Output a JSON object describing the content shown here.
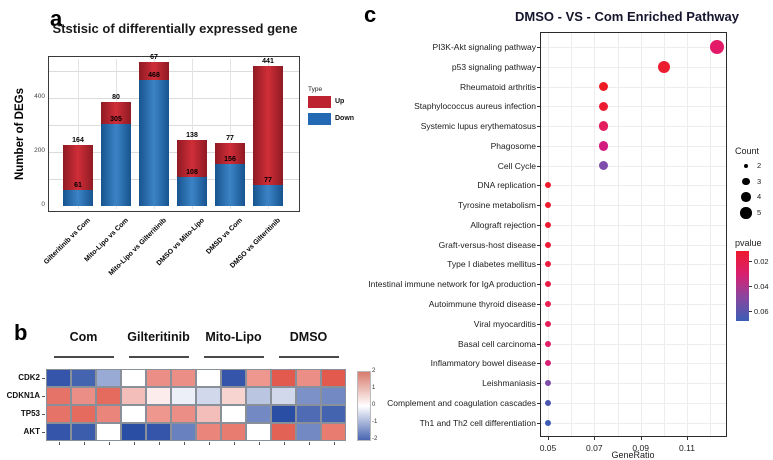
{
  "panels": {
    "a": "a",
    "b": "b",
    "c": "c"
  },
  "chart_data": [
    {
      "type": "bar",
      "stacked": true,
      "title": "Ststisic of differentially expressed gene",
      "ylabel": "Number of DEGs",
      "legend_title": "Type",
      "categories": [
        "Gilteritinib vs Com",
        "Mito-Lipo vs Com",
        "Mito-Lipo vs Gilteritinib",
        "DMSO vs Mito-Lipo",
        "DMSD vs Com",
        "DMSO vs Gilteritinib"
      ],
      "series": [
        {
          "name": "Up",
          "color": "#bd2230",
          "values": [
            164,
            80,
            67,
            138,
            77,
            441
          ]
        },
        {
          "name": "Down",
          "color": "#2268b2",
          "values": [
            61,
            305,
            468,
            108,
            156,
            77
          ]
        }
      ],
      "yticks": [
        0,
        200,
        400
      ],
      "ylim": [
        0,
        560
      ],
      "grid": true
    },
    {
      "type": "heatmap",
      "groups": [
        "Com",
        "Gilteritinib",
        "Mito-Lipo",
        "DMSO"
      ],
      "cols_per_group": 3,
      "rows": [
        "CDK2",
        "CDKN1A",
        "TP53",
        "AKT"
      ],
      "values": [
        [
          -1.9,
          -1.7,
          -0.8,
          0.0,
          1.0,
          1.0,
          0.0,
          -1.9,
          0.9,
          1.6,
          1.0,
          1.6
        ],
        [
          1.3,
          1.0,
          1.4,
          0.5,
          0.1,
          -0.1,
          -0.3,
          0.3,
          -0.5,
          -0.3,
          -1.1,
          -1.2
        ],
        [
          1.3,
          1.4,
          1.1,
          0.0,
          0.9,
          1.0,
          0.5,
          0.0,
          -1.2,
          -2.0,
          -1.6,
          -1.7
        ],
        [
          -1.9,
          -1.8,
          0.0,
          -2.0,
          -1.9,
          -1.3,
          1.1,
          1.2,
          0.0,
          1.5,
          -1.2,
          1.2
        ]
      ],
      "scale": {
        "min": -2,
        "max": 2,
        "ticks": [
          2,
          1,
          0,
          -1,
          -2
        ],
        "pos_color": "#dc3a2a",
        "neg_color": "#2b4ea5",
        "mid_color": "#ffffff"
      }
    },
    {
      "type": "scatter",
      "title": "DMSO - VS - Com Enriched Pathway",
      "xlabel": "GeneRatio",
      "xticks": [
        "0.05",
        "0.07",
        "0.09",
        "0.11"
      ],
      "xlim": [
        0.046,
        0.128
      ],
      "points": [
        {
          "pathway": "PI3K-Akt signaling pathway",
          "gene_ratio": 0.123,
          "count": 5,
          "color": "#e31a67"
        },
        {
          "pathway": "p53 signaling pathway",
          "gene_ratio": 0.1,
          "count": 4,
          "color": "#ec1c2f"
        },
        {
          "pathway": "Rheumatoid arthritis",
          "gene_ratio": 0.074,
          "count": 3,
          "color": "#ed1c24"
        },
        {
          "pathway": "Staphylococcus aureus infection",
          "gene_ratio": 0.074,
          "count": 3,
          "color": "#ec1c33"
        },
        {
          "pathway": "Systemic lupus erythematosus",
          "gene_ratio": 0.074,
          "count": 3,
          "color": "#e41d5e"
        },
        {
          "pathway": "Phagosome",
          "gene_ratio": 0.074,
          "count": 3,
          "color": "#d41c80"
        },
        {
          "pathway": "Cell Cycle",
          "gene_ratio": 0.074,
          "count": 3,
          "color": "#7e4dad"
        },
        {
          "pathway": "DNA replication",
          "gene_ratio": 0.05,
          "count": 2,
          "color": "#ee1b2c"
        },
        {
          "pathway": "Tyrosine metabolism",
          "gene_ratio": 0.05,
          "count": 2,
          "color": "#ee1b2c"
        },
        {
          "pathway": "Allograft rejection",
          "gene_ratio": 0.05,
          "count": 2,
          "color": "#ed1b31"
        },
        {
          "pathway": "Graft-versus-host disease",
          "gene_ratio": 0.05,
          "count": 2,
          "color": "#ed1b36"
        },
        {
          "pathway": "Type I diabetes mellitus",
          "gene_ratio": 0.05,
          "count": 2,
          "color": "#ec1b3d"
        },
        {
          "pathway": "Intestinal immune network for IgA production",
          "gene_ratio": 0.05,
          "count": 2,
          "color": "#ea1c46"
        },
        {
          "pathway": "Autoimmune thyroid disease",
          "gene_ratio": 0.05,
          "count": 2,
          "color": "#e81d50"
        },
        {
          "pathway": "Viral myocarditis",
          "gene_ratio": 0.05,
          "count": 2,
          "color": "#e61d58"
        },
        {
          "pathway": "Basal cell carcinoma",
          "gene_ratio": 0.05,
          "count": 2,
          "color": "#e11e68"
        },
        {
          "pathway": "Inflammatory bowel disease",
          "gene_ratio": 0.05,
          "count": 2,
          "color": "#d92075"
        },
        {
          "pathway": "Leishmaniasis",
          "gene_ratio": 0.05,
          "count": 2,
          "color": "#7e4ca9"
        },
        {
          "pathway": "Complement and coagulation cascades",
          "gene_ratio": 0.05,
          "count": 2,
          "color": "#4b55af"
        },
        {
          "pathway": "Th1 and Th2 cell differentiation",
          "gene_ratio": 0.05,
          "count": 2,
          "color": "#3a5cb3"
        }
      ],
      "legends": {
        "count": {
          "title": "Count",
          "sizes": [
            2,
            3,
            4,
            5
          ]
        },
        "pvalue": {
          "title": "pvalue",
          "ticks": [
            "0.02",
            "0.04",
            "0.06"
          ],
          "colors": [
            "#ed1a2c",
            "#d92070",
            "#8947a0",
            "#3b5eb5"
          ]
        }
      }
    }
  ]
}
